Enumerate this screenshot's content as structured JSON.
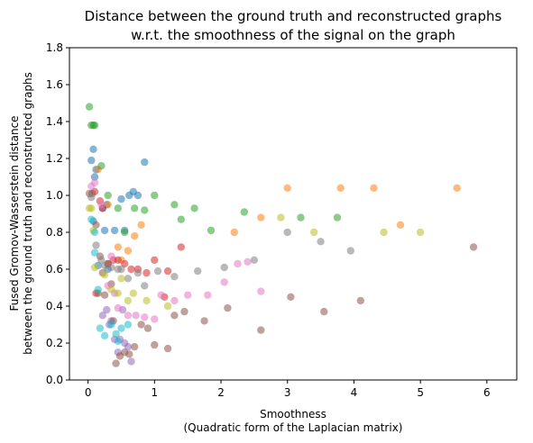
{
  "chart_data": {
    "type": "scatter",
    "title": [
      "Distance between the ground truth and reconstructed graphs",
      "w.r.t. the smoothness of the signal on the graph"
    ],
    "xlabel": [
      "Smoothness",
      "(Quadratic form of the Laplacian matrix)"
    ],
    "ylabel": [
      "Fused Gromov-Wasserstein distance",
      "between the ground truth and reconstructed graphs"
    ],
    "xlim": [
      -0.28,
      6.45
    ],
    "ylim": [
      0.0,
      1.8
    ],
    "xticks": [
      0,
      1,
      2,
      3,
      4,
      5,
      6
    ],
    "yticks": [
      0.0,
      0.2,
      0.4,
      0.6,
      0.8,
      1.0,
      1.2,
      1.4,
      1.6,
      1.8
    ],
    "grid": false,
    "legend": "none",
    "series": [
      {
        "color": "#1f77b4",
        "points": [
          [
            0.05,
            1.19
          ],
          [
            0.08,
            1.25
          ],
          [
            0.12,
            1.14
          ],
          [
            0.1,
            1.1
          ],
          [
            0.22,
            0.93
          ],
          [
            0.28,
            0.95
          ],
          [
            0.5,
            0.98
          ],
          [
            0.62,
            1.0
          ],
          [
            0.68,
            1.02
          ],
          [
            0.75,
            1.0
          ],
          [
            0.85,
            1.18
          ],
          [
            0.25,
            0.81
          ],
          [
            0.4,
            0.81
          ],
          [
            0.55,
            0.81
          ],
          [
            0.08,
            0.86
          ],
          [
            0.15,
            0.62
          ],
          [
            0.3,
            0.6
          ]
        ]
      },
      {
        "color": "#ff7f0e",
        "points": [
          [
            0.15,
            1.14
          ],
          [
            0.3,
            0.95
          ],
          [
            0.45,
            0.72
          ],
          [
            0.5,
            0.65
          ],
          [
            0.6,
            0.7
          ],
          [
            0.7,
            0.78
          ],
          [
            0.8,
            0.84
          ],
          [
            2.2,
            0.8
          ],
          [
            2.6,
            0.88
          ],
          [
            3.0,
            1.04
          ],
          [
            3.8,
            1.04
          ],
          [
            4.3,
            1.04
          ],
          [
            4.7,
            0.84
          ],
          [
            5.55,
            1.04
          ]
        ]
      },
      {
        "color": "#2ca02c",
        "points": [
          [
            0.02,
            1.48
          ],
          [
            0.05,
            1.38
          ],
          [
            0.08,
            1.38
          ],
          [
            0.1,
            1.38
          ],
          [
            0.2,
            1.16
          ],
          [
            0.3,
            1.0
          ],
          [
            0.45,
            0.93
          ],
          [
            0.55,
            0.8
          ],
          [
            0.7,
            0.93
          ],
          [
            0.85,
            0.92
          ],
          [
            1.0,
            1.0
          ],
          [
            1.3,
            0.95
          ],
          [
            1.4,
            0.87
          ],
          [
            1.6,
            0.93
          ],
          [
            1.85,
            0.81
          ],
          [
            2.35,
            0.91
          ],
          [
            3.2,
            0.88
          ],
          [
            3.75,
            0.88
          ]
        ]
      },
      {
        "color": "#d62728",
        "points": [
          [
            0.1,
            1.02
          ],
          [
            0.18,
            0.97
          ],
          [
            0.22,
            0.93
          ],
          [
            0.3,
            0.63
          ],
          [
            0.38,
            0.65
          ],
          [
            0.45,
            0.65
          ],
          [
            0.55,
            0.63
          ],
          [
            0.65,
            0.6
          ],
          [
            0.75,
            0.6
          ],
          [
            0.88,
            0.58
          ],
          [
            1.0,
            0.65
          ],
          [
            1.2,
            0.59
          ],
          [
            1.4,
            0.72
          ],
          [
            1.15,
            0.45
          ],
          [
            0.12,
            0.47
          ]
        ]
      },
      {
        "color": "#9467bd",
        "points": [
          [
            0.22,
            0.35
          ],
          [
            0.28,
            0.38
          ],
          [
            0.32,
            0.3
          ],
          [
            0.35,
            0.32
          ],
          [
            0.4,
            0.22
          ],
          [
            0.48,
            0.22
          ],
          [
            0.55,
            0.2
          ],
          [
            0.6,
            0.18
          ],
          [
            0.65,
            0.1
          ],
          [
            0.52,
            0.38
          ],
          [
            0.45,
            0.15
          ]
        ]
      },
      {
        "color": "#8c564b",
        "points": [
          [
            0.02,
            1.01
          ],
          [
            0.06,
            1.01
          ],
          [
            0.12,
            0.84
          ],
          [
            0.18,
            0.67
          ],
          [
            0.22,
            0.58
          ],
          [
            0.25,
            0.46
          ],
          [
            0.3,
            0.63
          ],
          [
            0.35,
            0.52
          ],
          [
            0.38,
            0.32
          ],
          [
            0.42,
            0.09
          ],
          [
            0.48,
            0.13
          ],
          [
            0.55,
            0.15
          ],
          [
            0.62,
            0.14
          ],
          [
            0.7,
            0.18
          ],
          [
            0.8,
            0.3
          ],
          [
            0.9,
            0.28
          ],
          [
            1.0,
            0.19
          ],
          [
            1.2,
            0.17
          ],
          [
            1.3,
            0.35
          ],
          [
            1.45,
            0.37
          ],
          [
            1.75,
            0.32
          ],
          [
            2.1,
            0.39
          ],
          [
            2.6,
            0.27
          ],
          [
            3.05,
            0.45
          ],
          [
            3.55,
            0.37
          ],
          [
            4.1,
            0.43
          ],
          [
            5.8,
            0.72
          ],
          [
            0.15,
            0.47
          ]
        ]
      },
      {
        "color": "#e377c2",
        "points": [
          [
            0.05,
            1.05
          ],
          [
            0.1,
            1.07
          ],
          [
            0.2,
            0.95
          ],
          [
            0.3,
            0.51
          ],
          [
            0.35,
            0.67
          ],
          [
            0.4,
            0.47
          ],
          [
            0.45,
            0.39
          ],
          [
            0.6,
            0.35
          ],
          [
            0.72,
            0.35
          ],
          [
            0.85,
            0.34
          ],
          [
            1.0,
            0.33
          ],
          [
            1.1,
            0.46
          ],
          [
            1.3,
            0.43
          ],
          [
            1.5,
            0.46
          ],
          [
            1.8,
            0.46
          ],
          [
            2.05,
            0.53
          ],
          [
            2.25,
            0.63
          ],
          [
            2.4,
            0.64
          ],
          [
            2.6,
            0.48
          ]
        ]
      },
      {
        "color": "#7f7f7f",
        "points": [
          [
            0.05,
            0.99
          ],
          [
            0.12,
            0.73
          ],
          [
            0.2,
            0.65
          ],
          [
            0.25,
            0.62
          ],
          [
            0.35,
            0.61
          ],
          [
            0.45,
            0.6
          ],
          [
            0.5,
            0.6
          ],
          [
            0.6,
            0.55
          ],
          [
            0.75,
            0.58
          ],
          [
            0.85,
            0.51
          ],
          [
            1.05,
            0.59
          ],
          [
            1.3,
            0.56
          ],
          [
            1.65,
            0.59
          ],
          [
            2.05,
            0.61
          ],
          [
            2.5,
            0.65
          ],
          [
            3.0,
            0.8
          ],
          [
            3.5,
            0.75
          ],
          [
            3.95,
            0.7
          ]
        ]
      },
      {
        "color": "#bcbd22",
        "points": [
          [
            0.02,
            0.93
          ],
          [
            0.05,
            0.93
          ],
          [
            0.08,
            0.81
          ],
          [
            0.1,
            0.61
          ],
          [
            0.25,
            0.57
          ],
          [
            0.35,
            0.49
          ],
          [
            0.45,
            0.47
          ],
          [
            0.5,
            0.55
          ],
          [
            0.6,
            0.43
          ],
          [
            0.68,
            0.47
          ],
          [
            0.88,
            0.43
          ],
          [
            1.2,
            0.4
          ],
          [
            2.9,
            0.88
          ],
          [
            3.4,
            0.8
          ],
          [
            4.45,
            0.8
          ],
          [
            5.0,
            0.8
          ]
        ]
      },
      {
        "color": "#17becf",
        "points": [
          [
            0.05,
            0.87
          ],
          [
            0.1,
            0.8
          ],
          [
            0.15,
            0.49
          ],
          [
            0.18,
            0.28
          ],
          [
            0.25,
            0.24
          ],
          [
            0.35,
            0.3
          ],
          [
            0.42,
            0.25
          ],
          [
            0.45,
            0.21
          ],
          [
            0.5,
            0.28
          ],
          [
            0.6,
            0.3
          ],
          [
            0.1,
            0.69
          ]
        ]
      }
    ]
  }
}
